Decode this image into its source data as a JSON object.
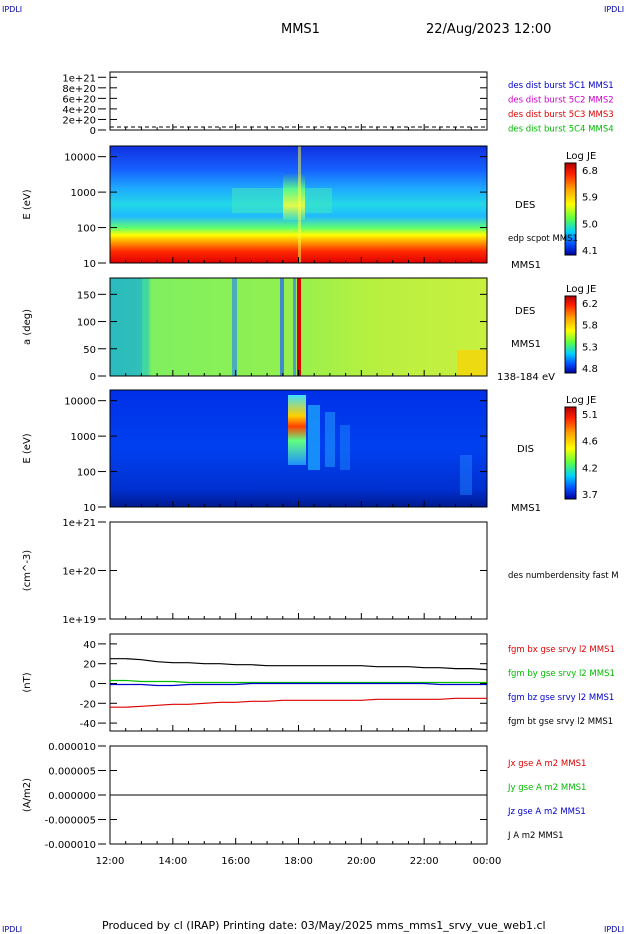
{
  "corner_label": "IPDLI",
  "header": {
    "mission": "MMS1",
    "datetime": "22/Aug/2023 12:00"
  },
  "footer": "Produced by cl (IRAP)   Printing date: 03/May/2025   mms_mms1_srvy_vue_web1.cl",
  "time_axis": {
    "range": [
      "12:00",
      "00:00"
    ],
    "ticks": [
      {
        "t": 0,
        "label": "12:00"
      },
      {
        "t": 2,
        "label": "14:00"
      },
      {
        "t": 4,
        "label": "16:00"
      },
      {
        "t": 6,
        "label": "18:00"
      },
      {
        "t": 8,
        "label": "20:00"
      },
      {
        "t": 10,
        "label": "22:00"
      },
      {
        "t": 12,
        "label": "00:00"
      }
    ]
  },
  "colors": {
    "blue": "#0000cc",
    "magenta": "#cc00cc",
    "red": "#dd0000",
    "green": "#00bb00",
    "black": "#000000"
  },
  "chart_data": [
    {
      "id": "p1",
      "type": "line",
      "yticks": [
        {
          "v": 0,
          "label": "0"
        },
        {
          "v": 2e+20,
          "label": "2e+20"
        },
        {
          "v": 4e+20,
          "label": "4e+20"
        },
        {
          "v": 6e+20,
          "label": "6e+20"
        },
        {
          "v": 8e+20,
          "label": "8e+20"
        },
        {
          "v": 1e+21,
          "label": "1e+21"
        }
      ],
      "ylim": [
        0,
        1.1e+21
      ],
      "legend": [
        {
          "text": "des dist burst 5C1 MMS1",
          "color": "#0000cc"
        },
        {
          "text": "des dist burst 5C2 MMS2",
          "color": "#cc00cc"
        },
        {
          "text": "des dist burst 5C3 MMS3",
          "color": "#dd0000"
        },
        {
          "text": "des dist burst 5C4 MMS4",
          "color": "#00bb00"
        }
      ]
    },
    {
      "id": "p2",
      "type": "heatmap",
      "ylabel": "E (eV)",
      "scale": "log",
      "ylim": [
        10,
        20000
      ],
      "yticks": [
        {
          "v": 10,
          "label": "10"
        },
        {
          "v": 100,
          "label": "100"
        },
        {
          "v": 1000,
          "label": "1000"
        },
        {
          "v": 10000,
          "label": "10000"
        }
      ],
      "labels": [
        "DES",
        "edp scpot MMS1",
        "MMS1"
      ],
      "colorbar": {
        "title": "Log JE",
        "ticks": [
          "6.8",
          "5.9",
          "5.0",
          "4.1"
        ]
      }
    },
    {
      "id": "p3",
      "type": "heatmap",
      "ylabel": "a (deg)",
      "ylim": [
        0,
        180
      ],
      "yticks": [
        {
          "v": 0,
          "label": "0"
        },
        {
          "v": 50,
          "label": "50"
        },
        {
          "v": 100,
          "label": "100"
        },
        {
          "v": 150,
          "label": "150"
        }
      ],
      "labels": [
        "DES",
        "MMS1",
        "138-184 eV"
      ],
      "colorbar": {
        "title": "Log JE",
        "ticks": [
          "6.2",
          "5.8",
          "5.3",
          "4.8"
        ]
      }
    },
    {
      "id": "p4",
      "type": "heatmap",
      "ylabel": "E (eV)",
      "scale": "log",
      "ylim": [
        10,
        20000
      ],
      "yticks": [
        {
          "v": 10,
          "label": "10"
        },
        {
          "v": 100,
          "label": "100"
        },
        {
          "v": 1000,
          "label": "1000"
        },
        {
          "v": 10000,
          "label": "10000"
        }
      ],
      "labels": [
        "DIS",
        "MMS1"
      ],
      "colorbar": {
        "title": "Log JE",
        "ticks": [
          "5.1",
          "4.6",
          "4.2",
          "3.7"
        ]
      }
    },
    {
      "id": "p5",
      "type": "line",
      "ylabel": "(cm^-3)",
      "scale": "log",
      "ylim": [
        1e+19,
        1e+21
      ],
      "yticks": [
        {
          "v": 1e+19,
          "label": "1e+19"
        },
        {
          "v": 1e+20,
          "label": "1e+20"
        },
        {
          "v": 1e+21,
          "label": "1e+21"
        }
      ],
      "legend": [
        {
          "text": "des numberdensity fast M",
          "color": "#000000"
        }
      ]
    },
    {
      "id": "p6",
      "type": "line",
      "ylabel": "(nT)",
      "ylim": [
        -48,
        50
      ],
      "yticks": [
        {
          "v": -40,
          "label": "-40"
        },
        {
          "v": -20,
          "label": "-20"
        },
        {
          "v": 0,
          "label": "0"
        },
        {
          "v": 20,
          "label": "20"
        },
        {
          "v": 40,
          "label": "40"
        }
      ],
      "x": [
        0,
        0.5,
        1,
        1.5,
        2,
        2.5,
        3,
        3.5,
        4,
        4.5,
        5,
        5.5,
        6,
        6.5,
        7,
        7.5,
        8,
        8.5,
        9,
        9.5,
        10,
        10.5,
        11,
        11.5,
        12
      ],
      "series": [
        {
          "name": "fgm bt gse srvy l2 MMS1",
          "color": "#000000",
          "values": [
            25,
            25,
            24,
            22,
            21,
            21,
            20,
            20,
            19,
            19,
            18,
            18,
            18,
            18,
            18,
            18,
            18,
            17,
            17,
            17,
            16,
            16,
            15,
            15,
            14
          ]
        },
        {
          "name": "fgm bx gse srvy l2 MMS1",
          "color": "#dd0000",
          "values": [
            -24,
            -24,
            -23,
            -22,
            -21,
            -21,
            -20,
            -19,
            -19,
            -18,
            -18,
            -17,
            -17,
            -17,
            -17,
            -17,
            -17,
            -16,
            -16,
            -16,
            -16,
            -16,
            -15,
            -15,
            -15
          ]
        },
        {
          "name": "fgm by gse srvy l2 MMS1",
          "color": "#00bb00",
          "values": [
            3,
            3,
            2,
            2,
            2,
            1,
            1,
            1,
            1,
            1,
            1,
            1,
            1,
            1,
            1,
            1,
            1,
            1,
            1,
            1,
            1,
            1,
            1,
            1,
            1
          ]
        },
        {
          "name": "fgm bz gse srvy l2 MMS1",
          "color": "#0000cc",
          "values": [
            -1,
            -1,
            -1,
            -2,
            -2,
            -1,
            -1,
            -1,
            -1,
            0,
            0,
            0,
            0,
            0,
            0,
            0,
            0,
            0,
            0,
            0,
            0,
            -1,
            -1,
            -1,
            -1
          ]
        }
      ]
    },
    {
      "id": "p7",
      "type": "line",
      "ylabel": "(A/m2)",
      "ylim": [
        -1e-05,
        1e-05
      ],
      "yticks": [
        {
          "v": -1e-05,
          "label": "-0.000010"
        },
        {
          "v": -5e-06,
          "label": "-0.000005"
        },
        {
          "v": 0,
          "label": "0.000000"
        },
        {
          "v": 5e-06,
          "label": "0.000005"
        },
        {
          "v": 1e-05,
          "label": "0.000010"
        }
      ],
      "legend": [
        {
          "text": "Jx gse A m2 MMS1",
          "color": "#dd0000"
        },
        {
          "text": "Jy gse A m2 MMS1",
          "color": "#00bb00"
        },
        {
          "text": "Jz gse A m2 MMS1",
          "color": "#0000cc"
        },
        {
          "text": "J A m2 MMS1",
          "color": "#000000"
        }
      ]
    }
  ]
}
